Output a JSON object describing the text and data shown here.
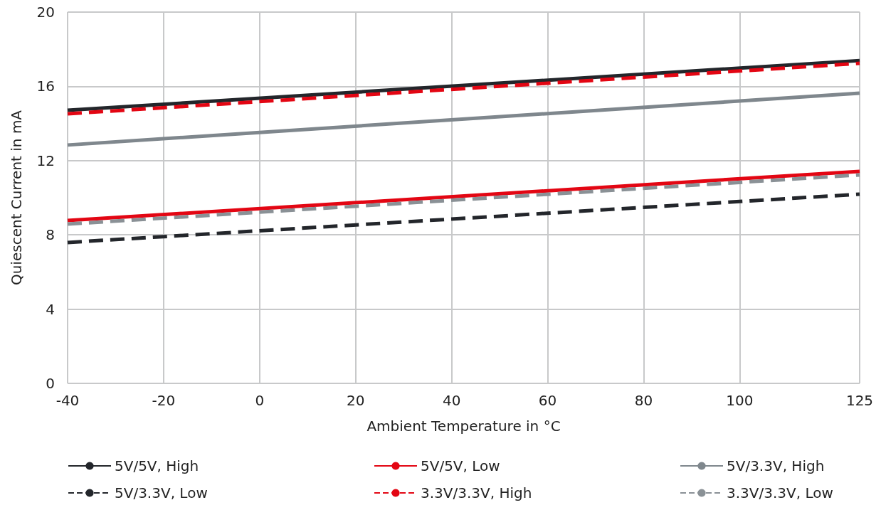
{
  "chart_data": {
    "type": "line",
    "xlabel": "Ambient Temperature in °C",
    "ylabel": "Quiescent Current in mA",
    "x": [
      -40,
      125
    ],
    "series": [
      {
        "name": "5V/5V, High",
        "color": "#23262b",
        "line_style": "solid",
        "values": [
          14.71,
          17.39
        ]
      },
      {
        "name": "5V/5V, Low",
        "color": "#e30613",
        "line_style": "solid",
        "values": [
          8.77,
          11.42
        ]
      },
      {
        "name": "5V/3.3V, High",
        "color": "#7f878d",
        "line_style": "solid",
        "values": [
          12.84,
          15.63
        ]
      },
      {
        "name": "5V/3.3V, Low",
        "color": "#23262b",
        "line_style": "dashed",
        "values": [
          7.59,
          10.19
        ]
      },
      {
        "name": "3.3V/3.3V, High",
        "color": "#e30613",
        "line_style": "dashed",
        "values": [
          14.52,
          17.24
        ]
      },
      {
        "name": "3.3V/3.3V, Low",
        "color": "#8a9196",
        "line_style": "dashed",
        "values": [
          8.58,
          11.23
        ]
      }
    ],
    "xlim": [
      -40,
      125
    ],
    "xticks": [
      -40,
      -20,
      0,
      20,
      40,
      60,
      80,
      100,
      125
    ],
    "ylim": [
      0,
      20
    ],
    "yticks": [
      0,
      4,
      8,
      12,
      16,
      20
    ],
    "grid": true,
    "legend": "bottom",
    "marker": "none"
  }
}
